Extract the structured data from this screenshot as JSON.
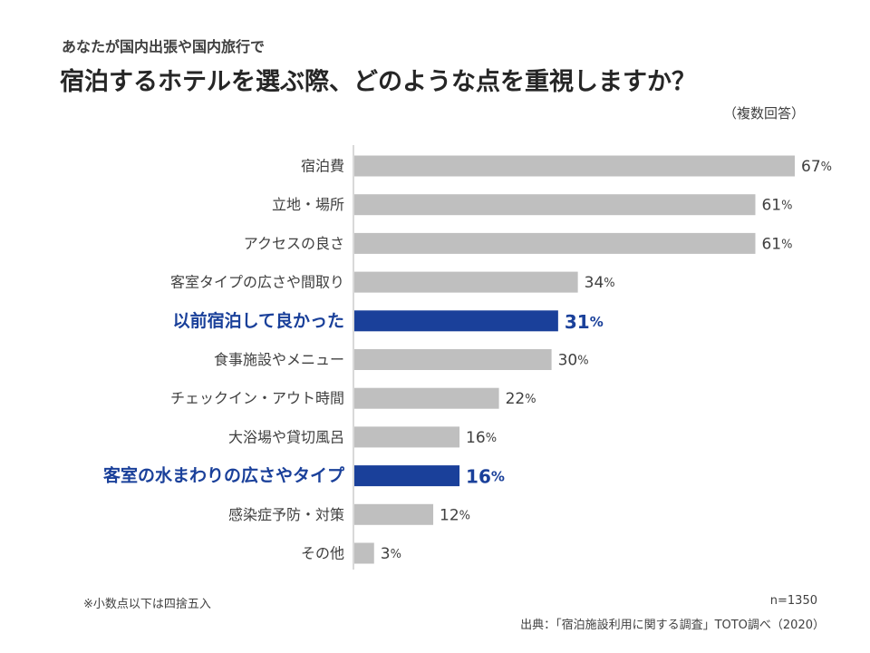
{
  "header": {
    "subtitle": "あなたが国内出張や国内旅行で",
    "title": "宿泊するホテルを選ぶ際、どのような点を重視しますか？",
    "multi_answer_note": "（複数回答）"
  },
  "chart_data": {
    "type": "bar",
    "orientation": "horizontal",
    "categories": [
      "宿泊費",
      "立地・場所",
      "アクセスの良さ",
      "客室タイプの広さや間取り",
      "以前宿泊して良かった",
      "食事施設やメニュー",
      "チェックイン・アウト時間",
      "大浴場や貸切風呂",
      "客室の水まわりの広さやタイプ",
      "感染症予防・対策",
      "その他"
    ],
    "values": [
      67,
      61,
      61,
      34,
      31,
      30,
      22,
      16,
      16,
      12,
      3
    ],
    "unit": "%",
    "highlighted": [
      false,
      false,
      false,
      false,
      true,
      false,
      false,
      false,
      true,
      false,
      false
    ],
    "xlim": [
      0,
      67
    ],
    "grid": false,
    "colors": {
      "default": "#bfbfbf",
      "highlight": "#1a409a"
    }
  },
  "footer": {
    "rounding_note": "※小数点以下は四捨五入",
    "sample_size": "n=1350",
    "source": "出典：「宿泊施設利用に関する調査」TOTO調べ（2020）"
  }
}
